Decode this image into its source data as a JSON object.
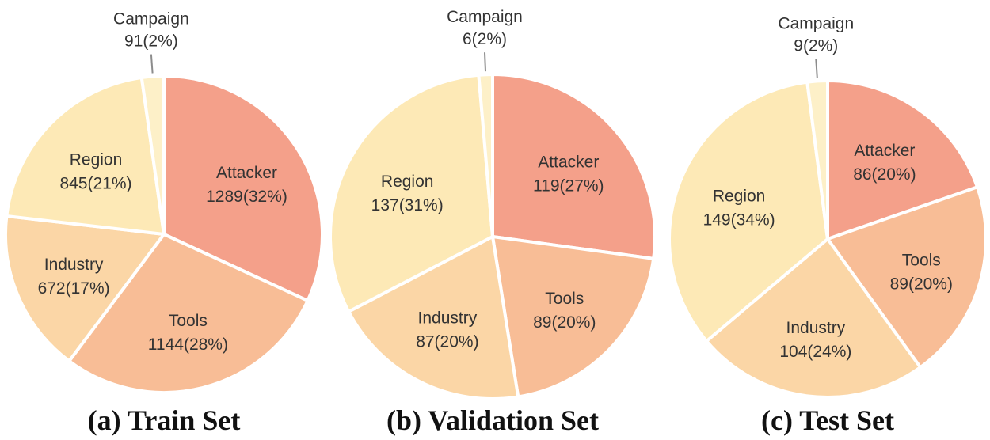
{
  "colors": {
    "Attacker": "#f4a08a",
    "Tools": "#f8bd96",
    "Industry": "#fbd6a6",
    "Region": "#fde9b6",
    "Campaign": "#fdf0c8",
    "leader": "#8c8c8c"
  },
  "chart_data": [
    {
      "type": "pie",
      "title": "(a) Train Set",
      "slices": [
        {
          "label": "Attacker",
          "value": 1289,
          "text": "1289(32%)"
        },
        {
          "label": "Tools",
          "value": 1144,
          "text": "1144(28%)"
        },
        {
          "label": "Industry",
          "value": 672,
          "text": "672(17%)"
        },
        {
          "label": "Region",
          "value": 845,
          "text": "845(21%)"
        },
        {
          "label": "Campaign",
          "value": 91,
          "text": "91(2%)"
        }
      ]
    },
    {
      "type": "pie",
      "title": "(b) Validation Set",
      "slices": [
        {
          "label": "Attacker",
          "value": 119,
          "text": "119(27%)"
        },
        {
          "label": "Tools",
          "value": 89,
          "text": "89(20%)"
        },
        {
          "label": "Industry",
          "value": 87,
          "text": "87(20%)"
        },
        {
          "label": "Region",
          "value": 137,
          "text": "137(31%)"
        },
        {
          "label": "Campaign",
          "value": 6,
          "text": "6(2%)"
        }
      ]
    },
    {
      "type": "pie",
      "title": "(c) Test Set",
      "slices": [
        {
          "label": "Attacker",
          "value": 86,
          "text": "86(20%)"
        },
        {
          "label": "Tools",
          "value": 89,
          "text": "89(20%)"
        },
        {
          "label": "Industry",
          "value": 104,
          "text": "104(24%)"
        },
        {
          "label": "Region",
          "value": 149,
          "text": "149(34%)"
        },
        {
          "label": "Campaign",
          "value": 9,
          "text": "9(2%)"
        }
      ]
    }
  ]
}
